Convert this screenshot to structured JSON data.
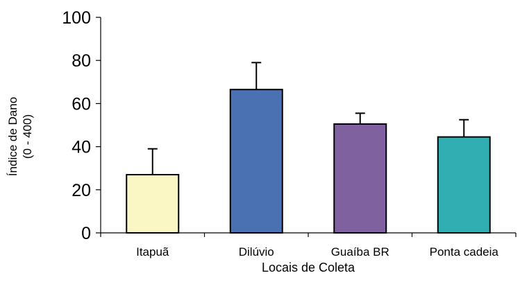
{
  "chart_data": {
    "type": "bar",
    "title": "",
    "xlabel": "Locais de Coleta",
    "ylabel_line1": "Índice de Dano",
    "ylabel_line2": "(0 - 400)",
    "ylim": [
      0,
      100
    ],
    "yticks": [
      0,
      20,
      40,
      60,
      80,
      100
    ],
    "grid": false,
    "legend": "none",
    "categories": [
      "Itapuã",
      "Dilúvio",
      "Guaíba BR",
      "Ponta cadeia"
    ],
    "values": [
      27,
      66.5,
      50.5,
      44.5
    ],
    "error_upper": [
      12,
      12.5,
      5,
      8
    ],
    "colors": [
      "#fbf7c4",
      "#4a72b2",
      "#80619f",
      "#31aeb1"
    ]
  }
}
